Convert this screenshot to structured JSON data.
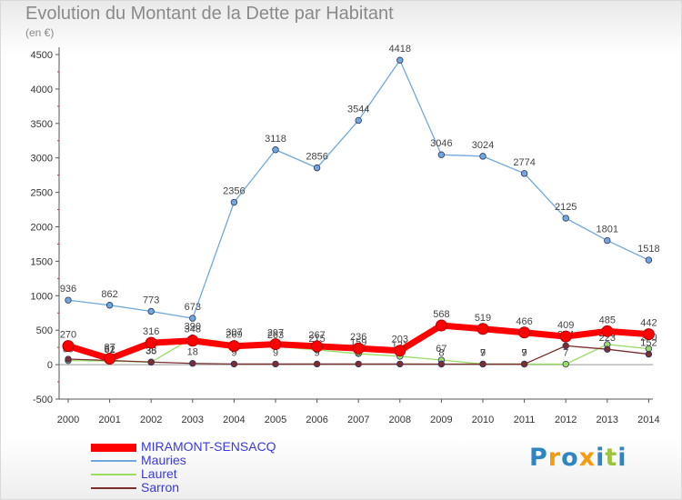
{
  "chart_data": {
    "type": "line",
    "title": "Evolution du Montant de la Dette par Habitant",
    "subtitle": "(en €)",
    "categories": [
      "2000",
      "2001",
      "2002",
      "2003",
      "2004",
      "2005",
      "2006",
      "2007",
      "2008",
      "2009",
      "2010",
      "2011",
      "2012",
      "2013",
      "2014"
    ],
    "ylim": [
      -500,
      4500
    ],
    "yticks": [
      -500,
      0,
      500,
      1000,
      1500,
      2000,
      2500,
      3000,
      3500,
      4000,
      4500
    ],
    "grid": false,
    "legend_position": "bottom-left",
    "series": [
      {
        "name": "MIRAMONT-SENSACQ",
        "color": "#ff0000",
        "values": [
          270,
          87,
          316,
          348,
          269,
          297,
          267,
          236,
          203,
          568,
          519,
          466,
          409,
          485,
          442
        ]
      },
      {
        "name": "Mauries",
        "color": "#6fa8dc",
        "values": [
          936,
          862,
          773,
          673,
          2356,
          3118,
          2856,
          3544,
          4418,
          3046,
          3024,
          2774,
          2125,
          1801,
          1518
        ]
      },
      {
        "name": "Lauret",
        "color": "#99dd66",
        "values": [
          59,
          52,
          35,
          390,
          307,
          263,
          215,
          159,
          121,
          67,
          9,
          9,
          7,
          293,
          230
        ]
      },
      {
        "name": "Sarron",
        "color": "#7a2e2e",
        "values": [
          80,
          61,
          38,
          18,
          9,
          9,
          9,
          9,
          9,
          8,
          7,
          7,
          274,
          223,
          152
        ]
      }
    ]
  },
  "logo": {
    "letters": [
      "P",
      "r",
      "o",
      "x",
      "i",
      "t",
      "i"
    ],
    "colors": [
      "#2e86c1",
      "#f39c12",
      "#2e86c1",
      "#f39c12",
      "#2e86c1",
      "#9bc53d",
      "#2e86c1"
    ]
  }
}
